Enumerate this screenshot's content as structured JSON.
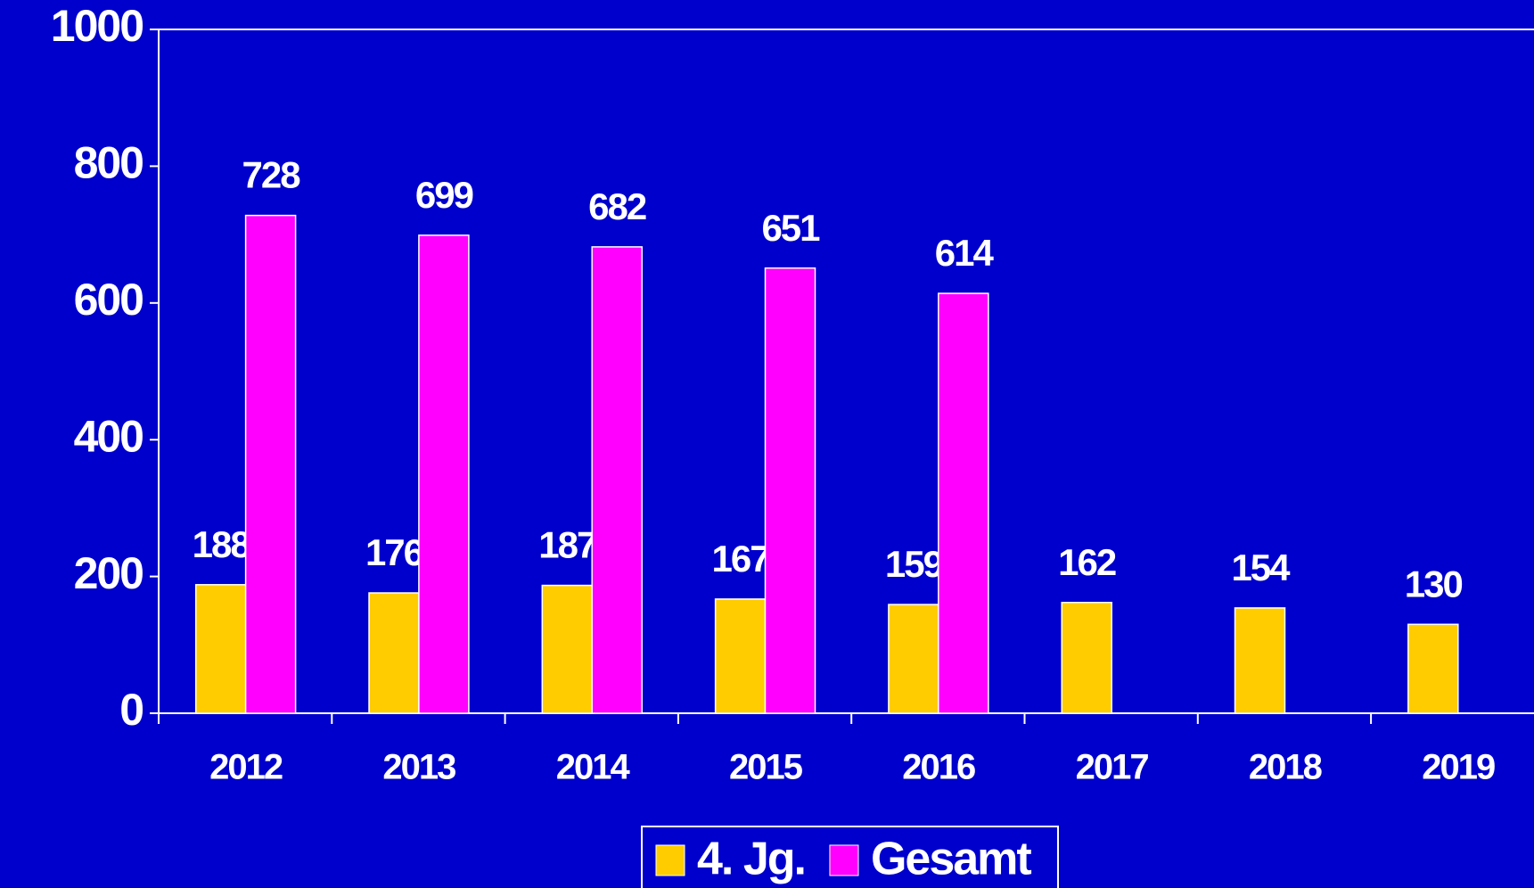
{
  "chart_data": {
    "type": "bar",
    "categories": [
      "2012",
      "2013",
      "2014",
      "2015",
      "2016",
      "2017",
      "2018",
      "2019"
    ],
    "series": [
      {
        "name": "4. Jg.",
        "color": "#ffcc00",
        "values": [
          188,
          176,
          187,
          167,
          159,
          162,
          154,
          130
        ]
      },
      {
        "name": "Gesamt",
        "color": "#ff00ff",
        "values": [
          728,
          699,
          682,
          651,
          614,
          null,
          null,
          null
        ]
      }
    ],
    "ylim": [
      0,
      1000
    ],
    "yticks": [
      0,
      200,
      400,
      600,
      800,
      1000
    ],
    "grid": false,
    "legend": "bottom"
  }
}
